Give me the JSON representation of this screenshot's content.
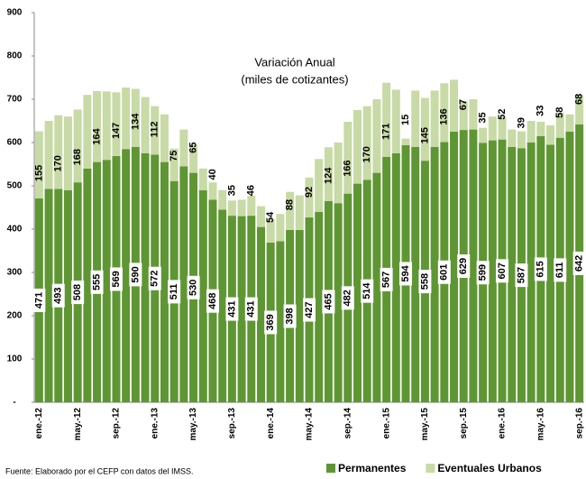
{
  "chart_data": {
    "type": "stacked_bar",
    "title": "Variación Anual",
    "subtitle": "(miles de cotizantes)",
    "source": "Fuente: Elaborado por el CEFP con datos del IMSS.",
    "categories": [
      "ene.-12",
      null,
      null,
      null,
      "may.-12",
      null,
      null,
      null,
      "sep.-12",
      null,
      null,
      null,
      "ene.-13",
      null,
      null,
      null,
      "may.-13",
      null,
      null,
      null,
      "sep.-13",
      null,
      null,
      null,
      "ene.-14",
      null,
      null,
      null,
      "may.-14",
      null,
      null,
      null,
      "sep.-14",
      null,
      null,
      null,
      "ene.-15",
      null,
      null,
      null,
      "may.-15",
      null,
      null,
      null,
      "sep.-15",
      null,
      null,
      null,
      "ene.-16",
      null,
      null,
      null,
      "may.-16",
      null,
      null,
      null,
      "sep.-16"
    ],
    "series": [
      {
        "name": "Permanentes",
        "color": "#5f9634",
        "values": [
          471,
          493,
          493,
          490,
          508,
          540,
          555,
          560,
          569,
          585,
          590,
          575,
          572,
          555,
          511,
          545,
          530,
          490,
          468,
          445,
          431,
          430,
          431,
          405,
          369,
          372,
          398,
          398,
          427,
          440,
          465,
          460,
          482,
          505,
          514,
          530,
          567,
          575,
          594,
          590,
          558,
          590,
          601,
          625,
          629,
          630,
          599,
          605,
          607,
          590,
          587,
          600,
          615,
          595,
          611,
          625,
          642
        ]
      },
      {
        "name": "Eventuales Urbanos",
        "color": "#c8daa6",
        "values": [
          155,
          157,
          170,
          170,
          168,
          170,
          164,
          158,
          147,
          142,
          134,
          130,
          112,
          110,
          75,
          85,
          65,
          50,
          40,
          45,
          35,
          38,
          46,
          48,
          54,
          63,
          88,
          80,
          92,
          122,
          124,
          140,
          166,
          170,
          170,
          170,
          171,
          147,
          15,
          130,
          145,
          130,
          136,
          120,
          67,
          70,
          35,
          55,
          52,
          40,
          39,
          50,
          33,
          45,
          58,
          40,
          68
        ]
      }
    ],
    "ylim": [
      0,
      900
    ],
    "yticks": [
      {
        "value": 0,
        "label": "-"
      },
      100,
      200,
      300,
      400,
      500,
      600,
      700,
      800,
      900
    ],
    "label_every": 2,
    "legend": "bottom-right"
  }
}
